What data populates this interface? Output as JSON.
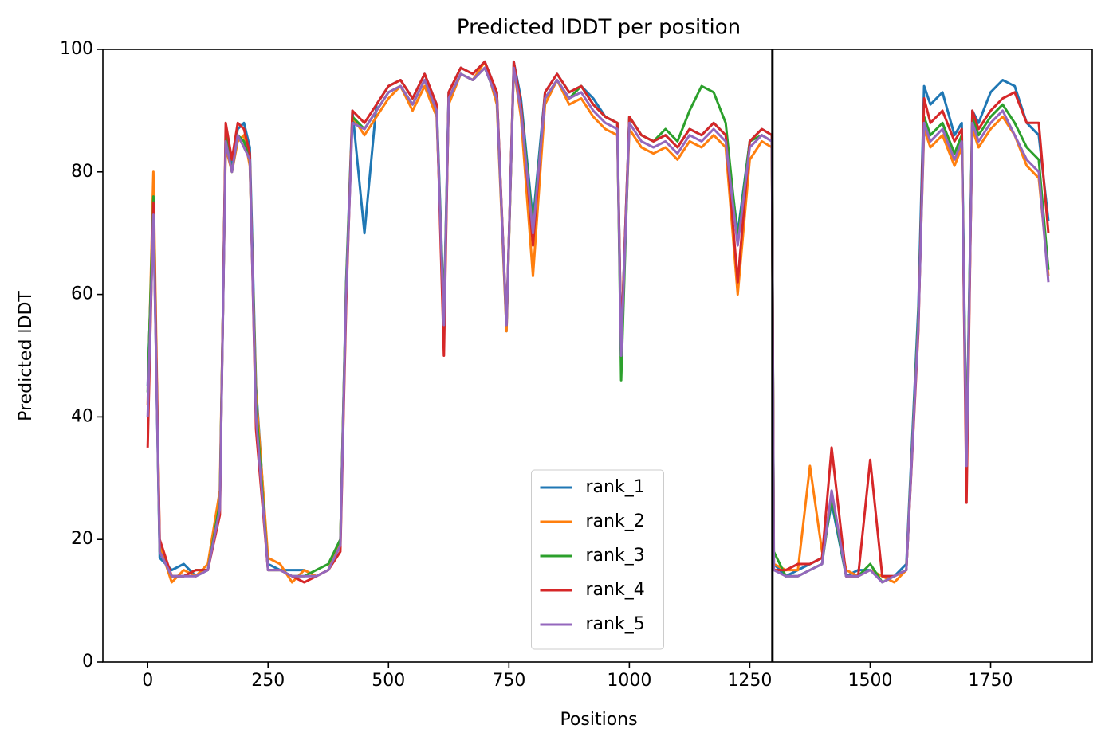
{
  "chart_data": {
    "type": "line",
    "title": "Predicted lDDT per position",
    "xlabel": "Positions",
    "ylabel": "Predicted lDDT",
    "xlim": [
      -93,
      1961
    ],
    "ylim": [
      0,
      100
    ],
    "xticks": [
      0,
      250,
      500,
      750,
      1000,
      1250,
      1500,
      1750
    ],
    "yticks": [
      0,
      20,
      40,
      60,
      80,
      100
    ],
    "legend": "lower center",
    "vlines": [
      1297
    ],
    "vline_color": "#000000",
    "x": [
      0,
      12,
      25,
      50,
      75,
      100,
      125,
      150,
      162,
      175,
      187,
      200,
      212,
      225,
      250,
      275,
      300,
      325,
      350,
      375,
      400,
      412,
      425,
      450,
      475,
      500,
      525,
      550,
      575,
      600,
      615,
      625,
      650,
      675,
      700,
      725,
      745,
      760,
      775,
      800,
      825,
      850,
      875,
      900,
      925,
      950,
      975,
      983,
      1000,
      1025,
      1050,
      1075,
      1100,
      1125,
      1150,
      1175,
      1200,
      1225,
      1250,
      1275,
      1296,
      1300,
      1325,
      1350,
      1375,
      1400,
      1420,
      1450,
      1475,
      1500,
      1525,
      1550,
      1575,
      1600,
      1612,
      1625,
      1650,
      1675,
      1690,
      1700,
      1712,
      1725,
      1750,
      1775,
      1800,
      1825,
      1850,
      1870
    ],
    "series": [
      {
        "name": "rank_1",
        "color": "#1f77b4",
        "values": [
          45,
          74,
          17,
          15,
          16,
          14,
          15,
          26,
          86,
          81,
          87,
          88,
          84,
          45,
          16,
          15,
          15,
          15,
          14,
          15,
          20,
          62,
          90,
          70,
          91,
          94,
          95,
          92,
          96,
          91,
          57,
          93,
          97,
          96,
          98,
          93,
          54,
          98,
          92,
          72,
          93,
          96,
          93,
          94,
          92,
          89,
          88,
          52,
          89,
          86,
          85,
          86,
          84,
          87,
          86,
          88,
          86,
          70,
          85,
          87,
          86,
          16,
          14,
          15,
          16,
          17,
          26,
          14,
          15,
          15,
          14,
          14,
          16,
          58,
          94,
          91,
          93,
          86,
          88,
          34,
          90,
          88,
          93,
          95,
          94,
          88,
          86,
          72
        ]
      },
      {
        "name": "rank_2",
        "color": "#ff7f0e",
        "values": [
          42,
          80,
          19,
          13,
          15,
          14,
          16,
          28,
          84,
          80,
          85,
          86,
          81,
          44,
          17,
          16,
          13,
          15,
          14,
          15,
          20,
          61,
          89,
          86,
          89,
          92,
          94,
          90,
          94,
          89,
          56,
          91,
          96,
          95,
          98,
          91,
          54,
          97,
          89,
          63,
          91,
          95,
          91,
          92,
          89,
          87,
          86,
          51,
          87,
          84,
          83,
          84,
          82,
          85,
          84,
          86,
          84,
          60,
          82,
          85,
          84,
          16,
          15,
          15,
          32,
          18,
          27,
          15,
          14,
          15,
          14,
          13,
          15,
          56,
          87,
          84,
          86,
          81,
          84,
          33,
          87,
          84,
          87,
          89,
          86,
          81,
          79,
          63
        ]
      },
      {
        "name": "rank_3",
        "color": "#2ca02c",
        "values": [
          44,
          76,
          18,
          14,
          14,
          15,
          15,
          26,
          86,
          80,
          86,
          85,
          82,
          42,
          15,
          15,
          14,
          14,
          15,
          16,
          20,
          61,
          89,
          87,
          90,
          93,
          94,
          91,
          95,
          90,
          56,
          92,
          96,
          95,
          97,
          92,
          55,
          97,
          91,
          71,
          92,
          95,
          92,
          94,
          91,
          89,
          88,
          46,
          89,
          86,
          85,
          87,
          85,
          90,
          94,
          93,
          88,
          69,
          85,
          86,
          85,
          18,
          14,
          14,
          15,
          16,
          27,
          14,
          14,
          16,
          13,
          14,
          15,
          56,
          89,
          86,
          88,
          83,
          86,
          33,
          89,
          86,
          89,
          91,
          88,
          84,
          82,
          64
        ]
      },
      {
        "name": "rank_4",
        "color": "#d62728",
        "values": [
          35,
          75,
          20,
          14,
          14,
          15,
          15,
          24,
          88,
          82,
          88,
          87,
          83,
          38,
          15,
          15,
          14,
          13,
          14,
          15,
          18,
          58,
          90,
          88,
          91,
          94,
          95,
          92,
          96,
          91,
          50,
          93,
          97,
          96,
          98,
          93,
          55,
          98,
          91,
          68,
          93,
          96,
          93,
          94,
          91,
          89,
          88,
          52,
          89,
          86,
          85,
          86,
          84,
          87,
          86,
          88,
          86,
          62,
          85,
          87,
          86,
          15,
          15,
          16,
          16,
          17,
          35,
          14,
          14,
          33,
          14,
          14,
          15,
          54,
          92,
          88,
          90,
          85,
          87,
          26,
          90,
          87,
          90,
          92,
          93,
          88,
          88,
          70
        ]
      },
      {
        "name": "rank_5",
        "color": "#9467bd",
        "values": [
          40,
          73,
          18,
          14,
          14,
          14,
          15,
          25,
          85,
          80,
          86,
          84,
          82,
          40,
          15,
          15,
          14,
          14,
          14,
          15,
          19,
          60,
          88,
          87,
          90,
          93,
          94,
          91,
          95,
          90,
          55,
          92,
          96,
          95,
          97,
          92,
          55,
          97,
          90,
          70,
          92,
          95,
          92,
          93,
          90,
          88,
          87,
          50,
          88,
          85,
          84,
          85,
          83,
          86,
          85,
          87,
          85,
          68,
          84,
          86,
          85,
          15,
          14,
          14,
          15,
          16,
          28,
          14,
          14,
          15,
          13,
          14,
          15,
          55,
          88,
          85,
          87,
          82,
          85,
          32,
          88,
          85,
          88,
          90,
          86,
          82,
          80,
          62
        ]
      }
    ]
  }
}
